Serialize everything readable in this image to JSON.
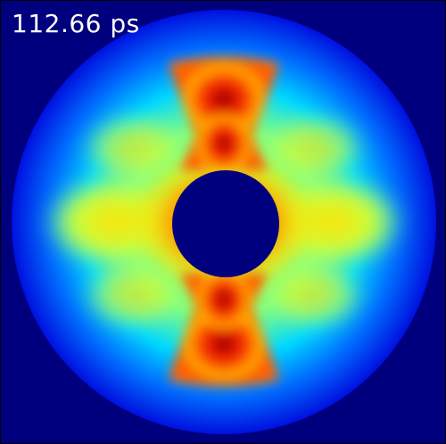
{
  "simulation_frame": {
    "time_label": "112.66 ps",
    "colormap": "jet",
    "colors": {
      "background": "#00007f",
      "low": "#0000ff",
      "mid_low": "#00c8ff",
      "mid": "#c8ff3c",
      "mid_high": "#ffb400",
      "high": "#ff2800",
      "peak": "#900000",
      "hole": "#00007f"
    }
  }
}
